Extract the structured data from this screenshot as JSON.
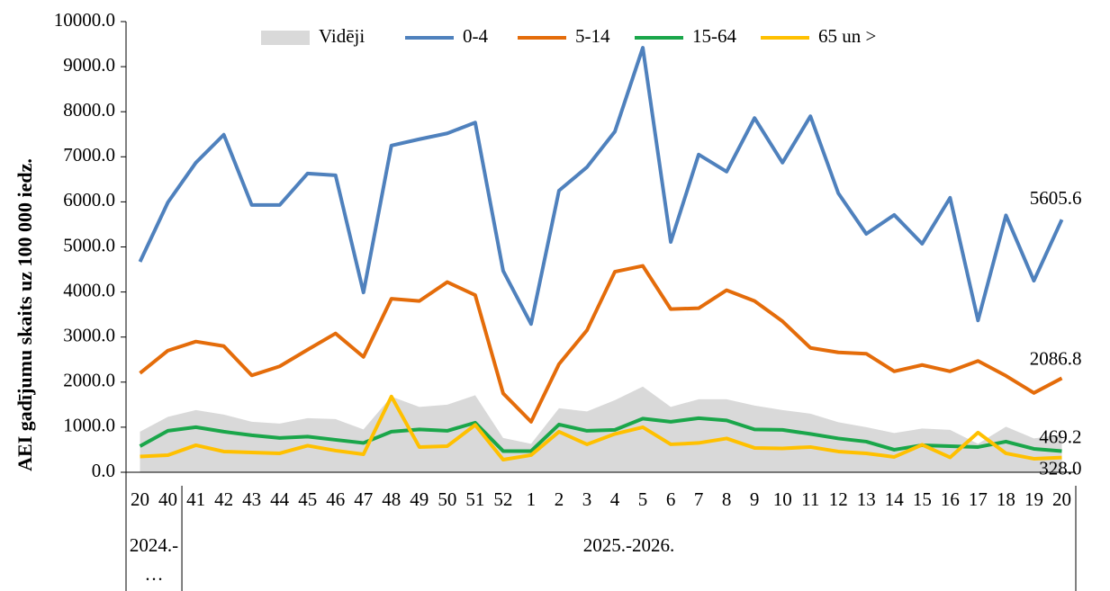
{
  "chart_data": {
    "type": "line",
    "y_label": "AEI gadījumu skaits uz 100 000 iedz.",
    "categories": [
      "20",
      "40",
      "41",
      "42",
      "43",
      "44",
      "45",
      "46",
      "47",
      "48",
      "49",
      "50",
      "51",
      "52",
      "1",
      "2",
      "3",
      "4",
      "5",
      "6",
      "7",
      "8",
      "9",
      "10",
      "11",
      "12",
      "13",
      "14",
      "15",
      "16",
      "17",
      "18",
      "19",
      "20"
    ],
    "groups": [
      {
        "label": "2024.-…",
        "size": 2
      },
      {
        "label": "2025.-2026.",
        "size": 32
      }
    ],
    "ylim": [
      0,
      10000
    ],
    "yticks": [
      {
        "value": 0,
        "label": "0.0"
      },
      {
        "value": 1000,
        "label": "1000.0"
      },
      {
        "value": 2000,
        "label": "2000.0"
      },
      {
        "value": 3000,
        "label": "3000.0"
      },
      {
        "value": 4000,
        "label": "4000.0"
      },
      {
        "value": 5000,
        "label": "5000.0"
      },
      {
        "value": 6000,
        "label": "6000.0"
      },
      {
        "value": 7000,
        "label": "7000.0"
      },
      {
        "value": 8000,
        "label": "8000.0"
      },
      {
        "value": 9000,
        "label": "9000.0"
      },
      {
        "value": 10000,
        "label": "10000.0"
      }
    ],
    "grid": false,
    "legend": "top",
    "series": [
      {
        "name": "Vidēji",
        "style": "area",
        "color": "#d9d9d9",
        "values": [
          900,
          1230,
          1380,
          1280,
          1120,
          1080,
          1200,
          1180,
          950,
          1680,
          1450,
          1500,
          1710,
          760,
          630,
          1420,
          1350,
          1600,
          1900,
          1450,
          1620,
          1620,
          1480,
          1380,
          1300,
          1110,
          1000,
          870,
          970,
          940,
          630,
          1010,
          750,
          830
        ]
      },
      {
        "name": "0-4",
        "style": "line",
        "color": "#4f81bd",
        "values": [
          4670,
          5990,
          6870,
          7490,
          5930,
          5930,
          6630,
          6590,
          3990,
          7250,
          7390,
          7520,
          7760,
          4470,
          3290,
          6250,
          6770,
          7560,
          9420,
          5110,
          7050,
          6670,
          7860,
          6870,
          7900,
          6190,
          5290,
          5710,
          5070,
          6090,
          3370,
          5700,
          4250,
          5605.6
        ],
        "value_labels": [
          null,
          null,
          null,
          null,
          null,
          null,
          null,
          null,
          null,
          null,
          null,
          null,
          null,
          null,
          null,
          null,
          null,
          null,
          null,
          null,
          null,
          null,
          null,
          null,
          null,
          null,
          null,
          null,
          null,
          null,
          null,
          null,
          null,
          "5605.6"
        ]
      },
      {
        "name": "5-14",
        "style": "line",
        "color": "#e46c0a",
        "values": [
          2200,
          2700,
          2900,
          2800,
          2150,
          2350,
          2720,
          3080,
          2560,
          3850,
          3800,
          4220,
          3930,
          1750,
          1120,
          2400,
          3150,
          4450,
          4580,
          3620,
          3640,
          4040,
          3800,
          3350,
          2760,
          2660,
          2630,
          2240,
          2380,
          2240,
          2470,
          2140,
          1760,
          2086.8
        ],
        "value_labels": [
          null,
          null,
          null,
          null,
          null,
          null,
          null,
          null,
          null,
          null,
          null,
          null,
          null,
          null,
          null,
          null,
          null,
          null,
          null,
          null,
          null,
          null,
          null,
          null,
          null,
          null,
          null,
          null,
          null,
          null,
          null,
          null,
          null,
          "2086.8"
        ]
      },
      {
        "name": "15-64",
        "style": "line",
        "color": "#1aa64a",
        "values": [
          580,
          920,
          1000,
          900,
          820,
          760,
          790,
          720,
          650,
          900,
          950,
          920,
          1100,
          470,
          470,
          1060,
          920,
          940,
          1190,
          1120,
          1200,
          1150,
          950,
          940,
          850,
          750,
          680,
          500,
          600,
          580,
          560,
          680,
          520,
          469.2
        ],
        "value_labels": [
          null,
          null,
          null,
          null,
          null,
          null,
          null,
          null,
          null,
          null,
          null,
          null,
          null,
          null,
          null,
          null,
          null,
          null,
          null,
          null,
          null,
          null,
          null,
          null,
          null,
          null,
          null,
          null,
          null,
          null,
          null,
          null,
          null,
          "469.2"
        ]
      },
      {
        "name": "65 un >",
        "style": "line",
        "color": "#ffc000",
        "values": [
          350,
          380,
          600,
          460,
          440,
          420,
          590,
          480,
          400,
          1680,
          560,
          580,
          1050,
          280,
          380,
          900,
          620,
          850,
          1000,
          620,
          650,
          750,
          540,
          530,
          560,
          460,
          420,
          340,
          610,
          330,
          880,
          420,
          300,
          328.0
        ],
        "value_labels": [
          null,
          null,
          null,
          null,
          null,
          null,
          null,
          null,
          null,
          null,
          null,
          null,
          null,
          null,
          null,
          null,
          null,
          null,
          null,
          null,
          null,
          null,
          null,
          null,
          null,
          null,
          null,
          null,
          null,
          null,
          null,
          null,
          null,
          "328.0"
        ]
      }
    ]
  }
}
